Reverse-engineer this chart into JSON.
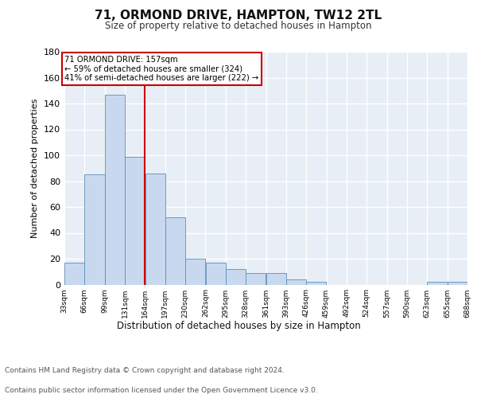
{
  "title": "71, ORMOND DRIVE, HAMPTON, TW12 2TL",
  "subtitle": "Size of property relative to detached houses in Hampton",
  "xlabel": "Distribution of detached houses by size in Hampton",
  "ylabel": "Number of detached properties",
  "bar_color": "#c8d9ef",
  "bar_edge_color": "#5b8db8",
  "background_color": "#e8eef6",
  "grid_color": "#ffffff",
  "red_line_x": 164,
  "bin_width": 33,
  "bin_starts": [
    33,
    66,
    99,
    132,
    165,
    198,
    231,
    264,
    297,
    330,
    363,
    396,
    429,
    462,
    495,
    528,
    561,
    594,
    627,
    660
  ],
  "bar_heights": [
    17,
    85,
    147,
    99,
    86,
    52,
    20,
    17,
    12,
    9,
    9,
    4,
    2,
    0,
    0,
    0,
    0,
    0,
    2,
    2
  ],
  "tick_labels": [
    "33sqm",
    "66sqm",
    "99sqm",
    "131sqm",
    "164sqm",
    "197sqm",
    "230sqm",
    "262sqm",
    "295sqm",
    "328sqm",
    "361sqm",
    "393sqm",
    "426sqm",
    "459sqm",
    "492sqm",
    "524sqm",
    "557sqm",
    "590sqm",
    "623sqm",
    "655sqm",
    "688sqm"
  ],
  "ylim": [
    0,
    180
  ],
  "yticks": [
    0,
    20,
    40,
    60,
    80,
    100,
    120,
    140,
    160,
    180
  ],
  "annotation_title": "71 ORMOND DRIVE: 157sqm",
  "annotation_line1": "← 59% of detached houses are smaller (324)",
  "annotation_line2": "41% of semi-detached houses are larger (222) →",
  "annotation_box_color": "#ffffff",
  "annotation_box_edge": "#cc0000",
  "footer_line1": "Contains HM Land Registry data © Crown copyright and database right 2024.",
  "footer_line2": "Contains public sector information licensed under the Open Government Licence v3.0."
}
